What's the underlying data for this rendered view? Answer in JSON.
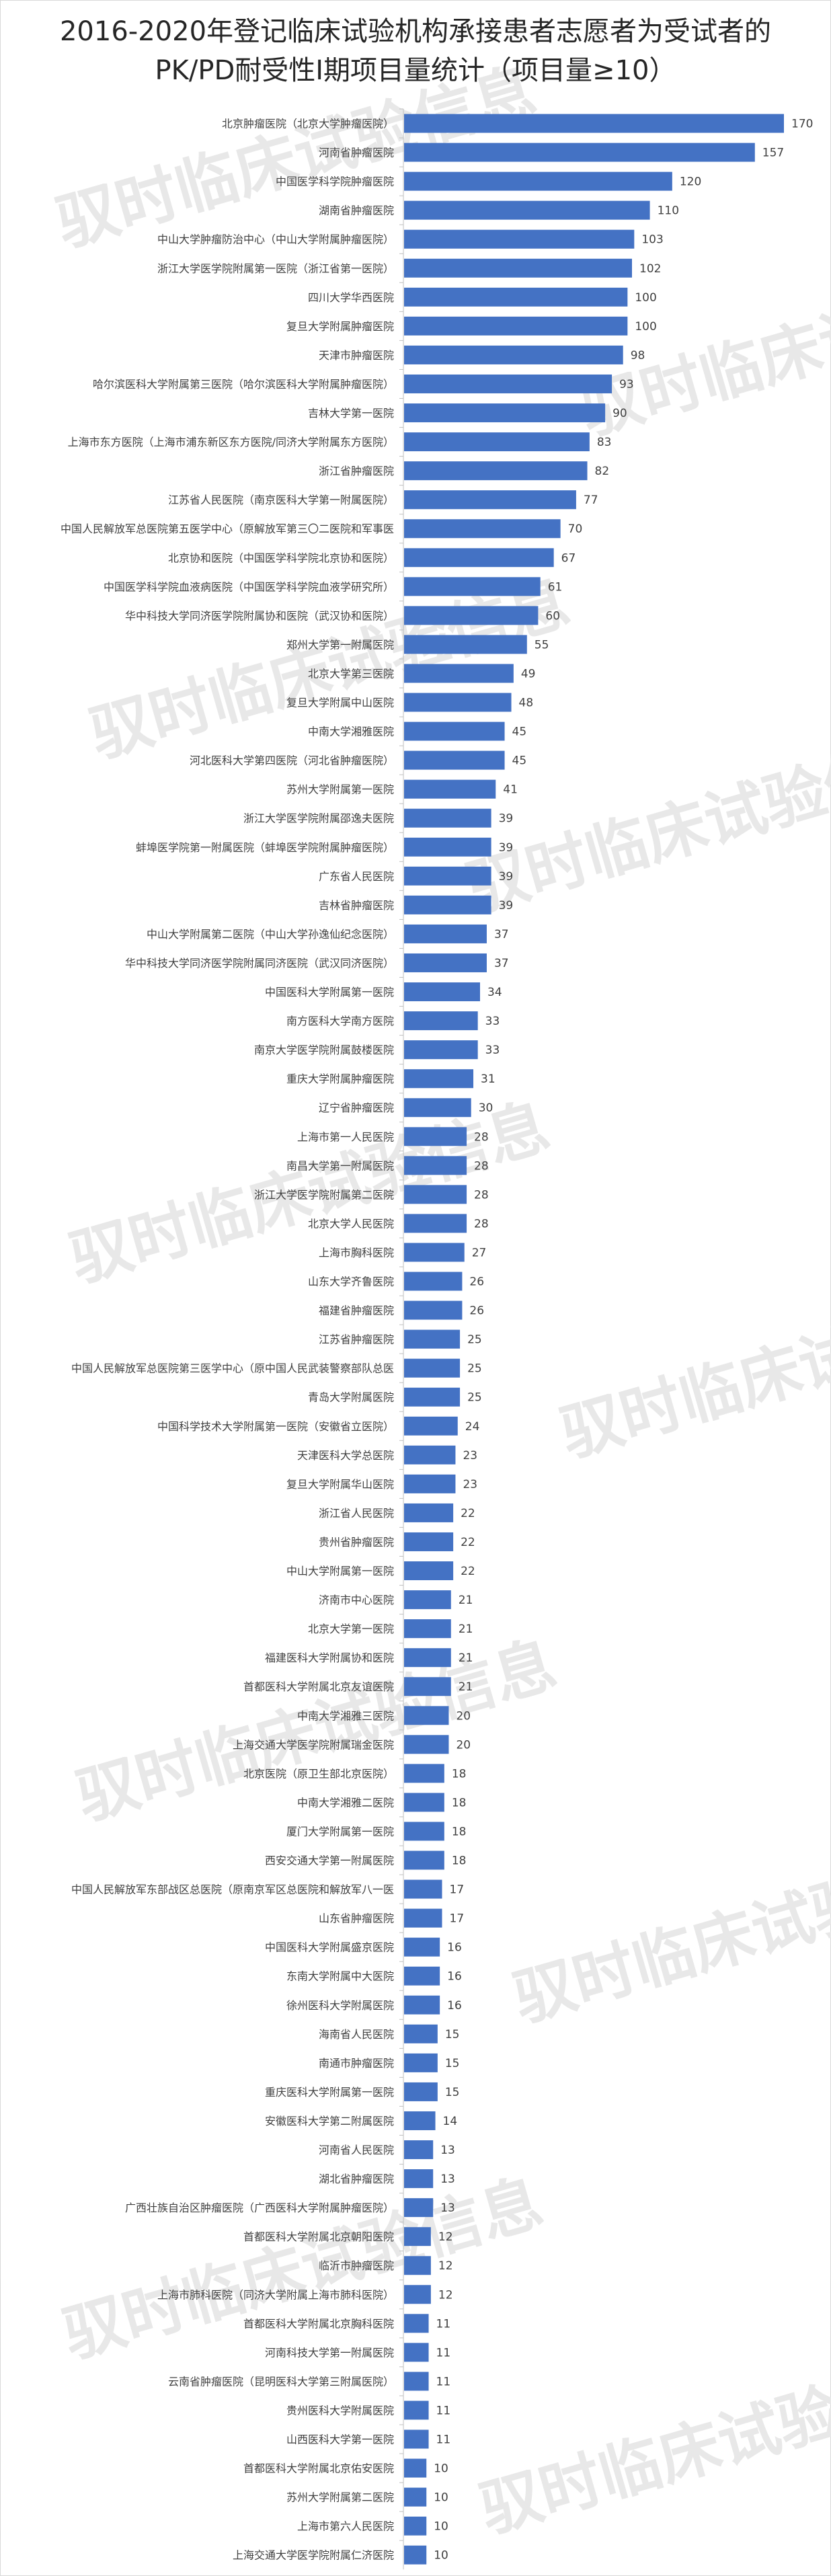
{
  "watermark": "驭时临床试验信息",
  "chart_data": {
    "type": "bar",
    "orientation": "horizontal",
    "title": [
      "2016-2020年登记临床试验机构承接患者志愿者为受试者的",
      "PK/PD耐受性I期项目量统计（项目量≥10）"
    ],
    "bar_color": "#4472c4",
    "data_labels": true,
    "categories": [
      "北京肿瘤医院（北京大学肿瘤医院）",
      "河南省肿瘤医院",
      "中国医学科学院肿瘤医院",
      "湖南省肿瘤医院",
      "中山大学肿瘤防治中心（中山大学附属肿瘤医院）",
      "浙江大学医学院附属第一医院（浙江省第一医院）",
      "四川大学华西医院",
      "复旦大学附属肿瘤医院",
      "天津市肿瘤医院",
      "哈尔滨医科大学附属第三医院（哈尔滨医科大学附属肿瘤医院）",
      "吉林大学第一医院",
      "上海市东方医院（上海市浦东新区东方医院/同济大学附属东方医院）",
      "浙江省肿瘤医院",
      "江苏省人民医院（南京医科大学第一附属医院）",
      "中国人民解放军总医院第五医学中心（原解放军第三〇二医院和军事医",
      "北京协和医院（中国医学科学院北京协和医院）",
      "中国医学科学院血液病医院（中国医学科学院血液学研究所）",
      "华中科技大学同济医学院附属协和医院（武汉协和医院）",
      "郑州大学第一附属医院",
      "北京大学第三医院",
      "复旦大学附属中山医院",
      "中南大学湘雅医院",
      "河北医科大学第四医院（河北省肿瘤医院）",
      "苏州大学附属第一医院",
      "浙江大学医学院附属邵逸夫医院",
      "蚌埠医学院第一附属医院（蚌埠医学院附属肿瘤医院）",
      "广东省人民医院",
      "吉林省肿瘤医院",
      "中山大学附属第二医院（中山大学孙逸仙纪念医院）",
      "华中科技大学同济医学院附属同济医院（武汉同济医院）",
      "中国医科大学附属第一医院",
      "南方医科大学南方医院",
      "南京大学医学院附属鼓楼医院",
      "重庆大学附属肿瘤医院",
      "辽宁省肿瘤医院",
      "上海市第一人民医院",
      "南昌大学第一附属医院",
      "浙江大学医学院附属第二医院",
      "北京大学人民医院",
      "上海市胸科医院",
      "山东大学齐鲁医院",
      "福建省肿瘤医院",
      "江苏省肿瘤医院",
      "中国人民解放军总医院第三医学中心（原中国人民武装警察部队总医",
      "青岛大学附属医院",
      "中国科学技术大学附属第一医院（安徽省立医院）",
      "天津医科大学总医院",
      "复旦大学附属华山医院",
      "浙江省人民医院",
      "贵州省肿瘤医院",
      "中山大学附属第一医院",
      "济南市中心医院",
      "北京大学第一医院",
      "福建医科大学附属协和医院",
      "首都医科大学附属北京友谊医院",
      "中南大学湘雅三医院",
      "上海交通大学医学院附属瑞金医院",
      "北京医院（原卫生部北京医院）",
      "中南大学湘雅二医院",
      "厦门大学附属第一医院",
      "西安交通大学第一附属医院",
      "中国人民解放军东部战区总医院（原南京军区总医院和解放军八一医",
      "山东省肿瘤医院",
      "中国医科大学附属盛京医院",
      "东南大学附属中大医院",
      "徐州医科大学附属医院",
      "海南省人民医院",
      "南通市肿瘤医院",
      "重庆医科大学附属第一医院",
      "安徽医科大学第二附属医院",
      "河南省人民医院",
      "湖北省肿瘤医院",
      "广西壮族自治区肿瘤医院（广西医科大学附属肿瘤医院）",
      "首都医科大学附属北京朝阳医院",
      "临沂市肿瘤医院",
      "上海市肺科医院（同济大学附属上海市肺科医院）",
      "首都医科大学附属北京胸科医院",
      "河南科技大学第一附属医院",
      "云南省肿瘤医院（昆明医科大学第三附属医院）",
      "贵州医科大学附属医院",
      "山西医科大学第一医院",
      "首都医科大学附属北京佑安医院",
      "苏州大学附属第二医院",
      "上海市第六人民医院",
      "上海交通大学医学院附属仁济医院"
    ],
    "values": [
      170,
      157,
      120,
      110,
      103,
      102,
      100,
      100,
      98,
      93,
      90,
      83,
      82,
      77,
      70,
      67,
      61,
      60,
      55,
      49,
      48,
      45,
      45,
      41,
      39,
      39,
      39,
      39,
      37,
      37,
      34,
      33,
      33,
      31,
      30,
      28,
      28,
      28,
      28,
      27,
      26,
      26,
      25,
      25,
      25,
      24,
      23,
      23,
      22,
      22,
      22,
      21,
      21,
      21,
      21,
      20,
      20,
      18,
      18,
      18,
      18,
      17,
      17,
      16,
      16,
      16,
      15,
      15,
      15,
      14,
      13,
      13,
      13,
      12,
      12,
      12,
      11,
      11,
      11,
      11,
      11,
      10,
      10,
      10,
      10
    ],
    "xlim": [
      0,
      180
    ]
  }
}
